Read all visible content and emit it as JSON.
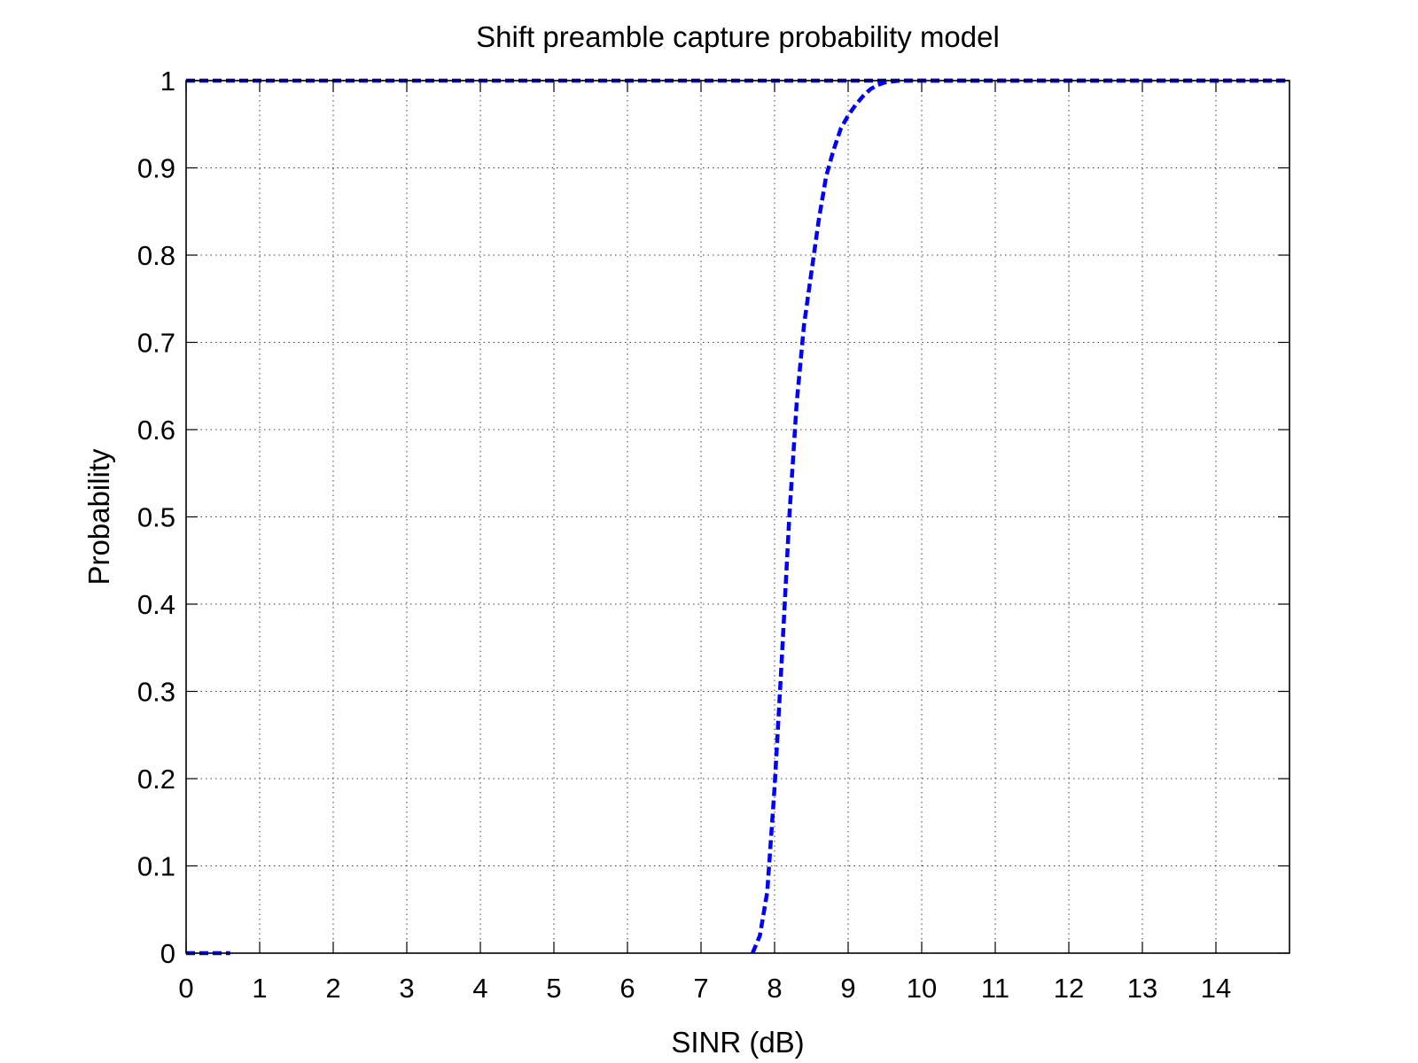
{
  "chart_data": {
    "type": "line",
    "title": "Shift preamble capture probability model",
    "xlabel": "SINR (dB)",
    "ylabel": "Probability",
    "xlim": [
      0,
      15
    ],
    "ylim": [
      0,
      1
    ],
    "xticks": [
      0,
      1,
      2,
      3,
      4,
      5,
      6,
      7,
      8,
      9,
      10,
      11,
      12,
      13,
      14
    ],
    "xtick_labels": [
      "0",
      "1",
      "2",
      "3",
      "4",
      "5",
      "6",
      "7",
      "8",
      "9",
      "10",
      "11",
      "12",
      "13",
      "14"
    ],
    "yticks": [
      0,
      0.1,
      0.2,
      0.3,
      0.4,
      0.5,
      0.6,
      0.7,
      0.8,
      0.9,
      1
    ],
    "ytick_labels": [
      "0",
      "0.1",
      "0.2",
      "0.3",
      "0.4",
      "0.5",
      "0.6",
      "0.7",
      "0.8",
      "0.9",
      "1"
    ],
    "grid": true,
    "series": [
      {
        "color": "#0000ff",
        "line_style": "dashed",
        "x": [
          7.7,
          7.8,
          7.9,
          8.0,
          8.1,
          8.2,
          8.3,
          8.4,
          8.5,
          8.6,
          8.7,
          8.8,
          8.9,
          9.0,
          9.1,
          9.2,
          9.3,
          9.4,
          9.5,
          9.6,
          9.7,
          9.8,
          9.9,
          10.0,
          15.0
        ],
        "values": [
          0.0,
          0.02,
          0.07,
          0.19,
          0.34,
          0.5,
          0.63,
          0.72,
          0.78,
          0.84,
          0.89,
          0.92,
          0.945,
          0.96,
          0.972,
          0.982,
          0.99,
          0.995,
          0.998,
          0.999,
          1.0,
          1.0,
          1.0,
          1.0,
          1.0
        ]
      },
      {
        "color": "#0000ff",
        "line_style": "dashed",
        "x": [
          0.0,
          0.6
        ],
        "values": [
          0.0,
          0.0
        ]
      },
      {
        "color": "#0000ff",
        "line_style": "dashed",
        "x": [
          0.0,
          15.0
        ],
        "values": [
          1.0,
          1.0
        ]
      }
    ]
  }
}
